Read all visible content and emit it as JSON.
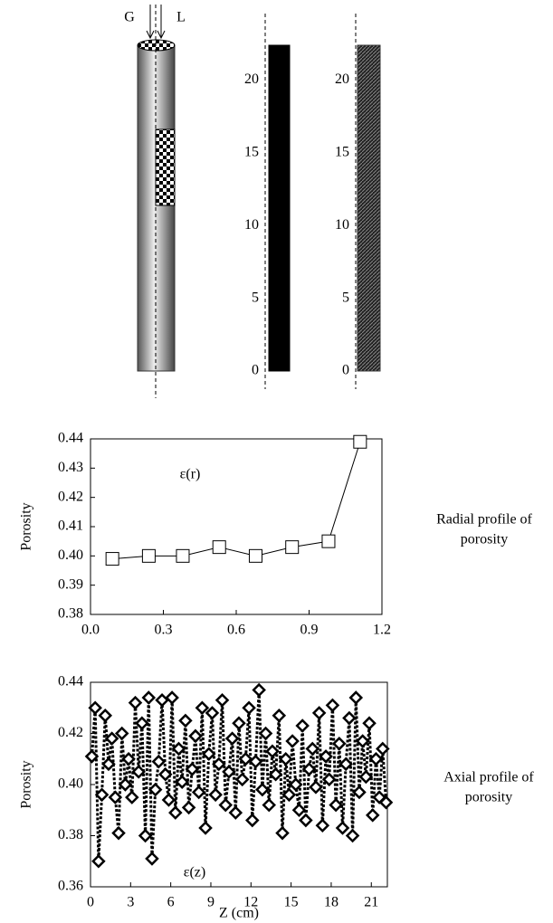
{
  "diagram": {
    "labels": [
      "G",
      "L"
    ]
  },
  "chart_data": [
    {
      "type": "bar",
      "values": [
        22.4
      ],
      "color": "#000000",
      "ylim": [
        0,
        22.4
      ],
      "yticks": [
        0,
        5,
        10,
        15,
        20
      ]
    },
    {
      "type": "bar",
      "values": [
        22.4
      ],
      "color": "#333333",
      "pattern": "hatch",
      "ylim": [
        0,
        22.4
      ],
      "yticks": [
        0,
        5,
        10,
        15,
        20
      ]
    },
    {
      "type": "line",
      "annotation": "ε(r)",
      "ylabel": "Porosity",
      "note": [
        "Radial profile of",
        "porosity"
      ],
      "x": [
        0.09,
        0.24,
        0.38,
        0.53,
        0.68,
        0.83,
        0.98,
        1.11
      ],
      "series": [
        {
          "values": [
            0.399,
            0.4,
            0.4,
            0.403,
            0.4,
            0.403,
            0.405,
            0.439
          ],
          "color": "#000000",
          "marker": "square",
          "dashed": false
        }
      ],
      "xlim": [
        0,
        1.2
      ],
      "xticks": [
        {
          "value": 0,
          "label": "0.0"
        },
        0.3,
        0.6,
        0.9,
        1.2
      ],
      "ylim": [
        0.38,
        0.44
      ],
      "yticks": [
        0.38,
        0.39,
        {
          "value": 0.4,
          "label": "0.40"
        },
        0.41,
        0.42,
        0.43,
        0.44
      ]
    },
    {
      "type": "line",
      "annotation": "ε(z)",
      "ylabel": "Porosity",
      "xlabel": "Z (cm)",
      "note": [
        "Axial profile of",
        "porosity"
      ],
      "x": [
        0.1,
        0.35,
        0.6,
        0.85,
        1.1,
        1.35,
        1.6,
        1.85,
        2.1,
        2.35,
        2.6,
        2.85,
        3.1,
        3.35,
        3.6,
        3.85,
        4.1,
        4.35,
        4.6,
        4.85,
        5.1,
        5.35,
        5.6,
        5.85,
        6.1,
        6.35,
        6.6,
        6.85,
        7.1,
        7.35,
        7.6,
        7.85,
        8.1,
        8.35,
        8.6,
        8.85,
        9.1,
        9.35,
        9.6,
        9.85,
        10.1,
        10.35,
        10.6,
        10.85,
        11.1,
        11.35,
        11.6,
        11.85,
        12.1,
        12.35,
        12.6,
        12.85,
        13.1,
        13.35,
        13.6,
        13.85,
        14.1,
        14.35,
        14.6,
        14.85,
        15.1,
        15.35,
        15.6,
        15.85,
        16.1,
        16.35,
        16.6,
        16.85,
        17.1,
        17.35,
        17.6,
        17.85,
        18.1,
        18.35,
        18.6,
        18.85,
        19.1,
        19.35,
        19.6,
        19.85,
        20.1,
        20.35,
        20.6,
        20.85,
        21.1,
        21.35,
        21.6,
        21.85,
        22.1
      ],
      "series": [
        {
          "values": [
            0.411,
            0.43,
            0.37,
            0.396,
            0.427,
            0.408,
            0.418,
            0.395,
            0.381,
            0.42,
            0.4,
            0.41,
            0.395,
            0.432,
            0.405,
            0.424,
            0.38,
            0.434,
            0.371,
            0.398,
            0.409,
            0.433,
            0.404,
            0.394,
            0.434,
            0.389,
            0.414,
            0.401,
            0.425,
            0.391,
            0.406,
            0.419,
            0.397,
            0.43,
            0.383,
            0.412,
            0.428,
            0.396,
            0.408,
            0.433,
            0.392,
            0.405,
            0.418,
            0.389,
            0.424,
            0.402,
            0.41,
            0.43,
            0.386,
            0.409,
            0.437,
            0.398,
            0.42,
            0.392,
            0.413,
            0.404,
            0.427,
            0.381,
            0.41,
            0.396,
            0.417,
            0.4,
            0.39,
            0.423,
            0.386,
            0.406,
            0.414,
            0.399,
            0.428,
            0.384,
            0.411,
            0.402,
            0.431,
            0.392,
            0.416,
            0.383,
            0.408,
            0.426,
            0.38,
            0.434,
            0.397,
            0.417,
            0.403,
            0.424,
            0.388,
            0.41,
            0.395,
            0.414,
            0.393
          ],
          "color": "#000000",
          "marker": "diamond",
          "dashed": true
        }
      ],
      "xlim": [
        0,
        22.2
      ],
      "xticks": [
        0,
        3,
        6,
        9,
        12,
        15,
        18,
        21
      ],
      "ylim": [
        0.36,
        0.44
      ],
      "yticks": [
        0.36,
        0.38,
        {
          "value": 0.4,
          "label": "0.40"
        },
        0.42,
        0.44
      ]
    }
  ]
}
